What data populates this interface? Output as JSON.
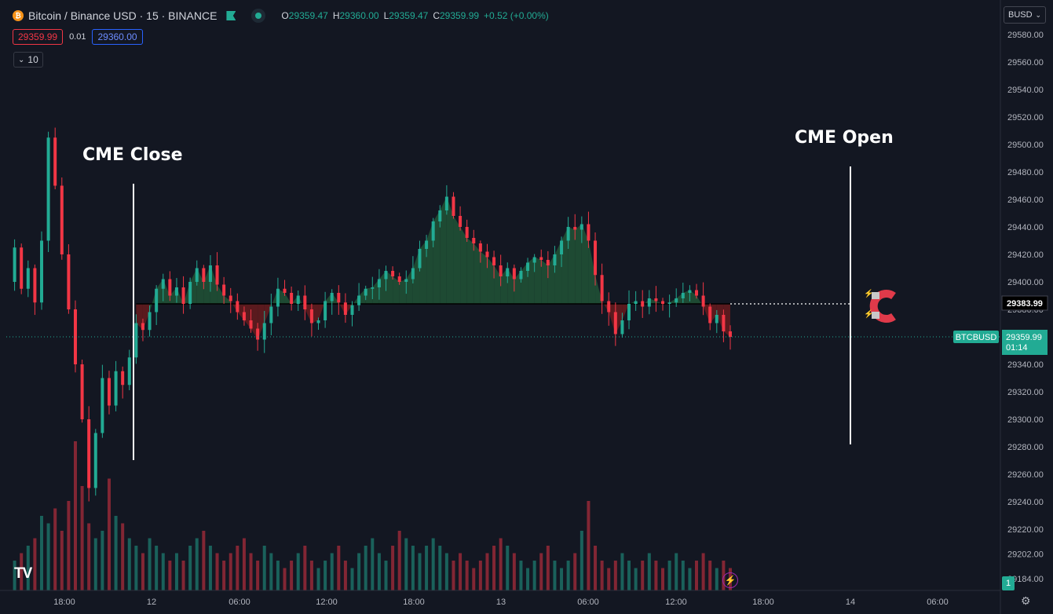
{
  "header": {
    "symbol_title": "Bitcoin / Binance USD · 15 · BINANCE",
    "ohlc": [
      {
        "k": "O",
        "v": "29359.47"
      },
      {
        "k": "H",
        "v": "29360.00"
      },
      {
        "k": "L",
        "v": "29359.47"
      },
      {
        "k": "C",
        "v": "29359.99"
      }
    ],
    "change": "+0.52 (+0.00%)",
    "sell_price": "29359.99",
    "spread": "0.01",
    "buy_price": "29360.00",
    "indicator_count": "10"
  },
  "currency_button": "BUSD",
  "badge_count": "1",
  "tv_logo_text": "TV",
  "colors": {
    "background": "#131722",
    "up": "#22ab94",
    "down": "#f23645",
    "up_fill": "#1e4a33",
    "down_fill": "#5a1a1e",
    "annotation": "#ffffff",
    "magnet": "#e03a4a"
  },
  "icons": [
    "bitcoin-coin-icon",
    "flag-icon",
    "live-dot-icon",
    "chevron-down-icon",
    "magnet-icon",
    "lightning-icon",
    "settings-gear-icon"
  ],
  "annotations": {
    "cme_close": "CME Close",
    "cme_open": "CME Open"
  },
  "chart_data": {
    "type": "candlestick",
    "title": "",
    "symbol": "BTCBUSD",
    "y_axis": {
      "ylim": [
        29175,
        29595
      ],
      "ticks": [
        "29580.00",
        "29560.00",
        "29540.00",
        "29520.00",
        "29500.00",
        "29480.00",
        "29460.00",
        "29440.00",
        "29420.00",
        "29400.00",
        "29380.00",
        "29360.00",
        "29340.00",
        "29320.00",
        "29300.00",
        "29280.00",
        "29260.00",
        "29240.00",
        "29220.00",
        "29202.00",
        "29184.00"
      ],
      "position": "right"
    },
    "x_axis": {
      "labels": [
        "18:00",
        "12",
        "06:00",
        "12:00",
        "18:00",
        "13",
        "06:00",
        "12:00",
        "18:00",
        "14",
        "06:00"
      ]
    },
    "current_price": "29359.99",
    "current_price_label": "BTCBUSD",
    "countdown": "01:14",
    "alert_price": "29383.99",
    "baseline_price": 29383.99,
    "price_path": [
      29400,
      29425,
      29395,
      29410,
      29385,
      29430,
      29505,
      29470,
      29420,
      29380,
      29340,
      29300,
      29250,
      29290,
      29330,
      29310,
      29335,
      29325,
      29345,
      29370,
      29365,
      29378,
      29395,
      29402,
      29390,
      29396,
      29384,
      29400,
      29410,
      29400,
      29412,
      29398,
      29390,
      29386,
      29378,
      29372,
      29366,
      29358,
      29370,
      29382,
      29395,
      29392,
      29384,
      29390,
      29380,
      29370,
      29372,
      29386,
      29392,
      29385,
      29376,
      29383,
      29390,
      29395,
      29396,
      29402,
      29408,
      29404,
      29400,
      29402,
      29410,
      29424,
      29430,
      29444,
      29452,
      29462,
      29448,
      29440,
      29432,
      29428,
      29422,
      29418,
      29412,
      29404,
      29410,
      29402,
      29408,
      29414,
      29418,
      29416,
      29412,
      29420,
      29430,
      29440,
      29438,
      29442,
      29430,
      29405,
      29386,
      29378,
      29362,
      29372,
      29384,
      29386,
      29382,
      29388,
      29386,
      29384,
      29385,
      29388,
      29392,
      29394,
      29390,
      29382,
      29370,
      29376,
      29364,
      29360
    ],
    "volume": {
      "values": [
        4,
        5,
        6,
        7,
        10,
        9,
        11,
        8,
        12,
        20,
        14,
        9,
        7,
        8,
        15,
        10,
        9,
        7,
        6,
        5,
        7,
        6,
        5,
        4,
        5,
        4,
        6,
        7,
        8,
        6,
        5,
        4,
        5,
        6,
        7,
        5,
        4,
        6,
        5,
        4,
        3,
        4,
        5,
        6,
        4,
        3,
        4,
        5,
        6,
        4,
        3,
        5,
        6,
        7,
        5,
        4,
        6,
        8,
        7,
        6,
        5,
        6,
        7,
        6,
        5,
        4,
        5,
        4,
        3,
        4,
        5,
        6,
        7,
        6,
        5,
        4,
        3,
        4,
        5,
        6,
        4,
        3,
        4,
        5,
        8,
        12,
        6,
        4,
        3,
        4,
        5,
        4,
        3,
        4,
        5,
        4,
        3,
        4,
        5,
        4,
        3,
        4,
        5,
        4,
        3,
        4,
        3,
        4
      ],
      "units": "relative"
    }
  }
}
